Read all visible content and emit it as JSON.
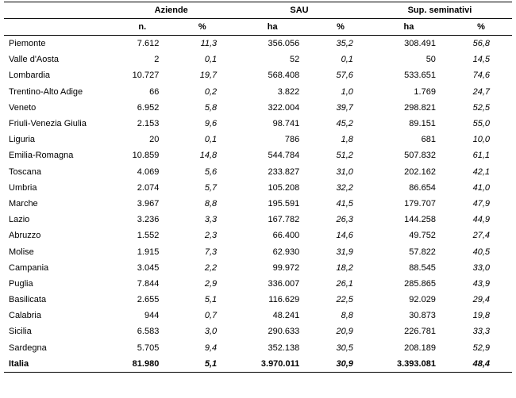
{
  "headers": {
    "group1": "Aziende",
    "group2": "SAU",
    "group3": "Sup. seminativi",
    "n": "n.",
    "pct": "%",
    "ha": "ha"
  },
  "rows": [
    {
      "region": "Piemonte",
      "n": "7.612",
      "np": "11,3",
      "ha1": "356.056",
      "p1": "35,2",
      "ha2": "308.491",
      "p2": "56,8"
    },
    {
      "region": "Valle d'Aosta",
      "n": "2",
      "np": "0,1",
      "ha1": "52",
      "p1": "0,1",
      "ha2": "50",
      "p2": "14,5"
    },
    {
      "region": "Lombardia",
      "n": "10.727",
      "np": "19,7",
      "ha1": "568.408",
      "p1": "57,6",
      "ha2": "533.651",
      "p2": "74,6"
    },
    {
      "region": "Trentino-Alto Adige",
      "n": "66",
      "np": "0,2",
      "ha1": "3.822",
      "p1": "1,0",
      "ha2": "1.769",
      "p2": "24,7"
    },
    {
      "region": "Veneto",
      "n": "6.952",
      "np": "5,8",
      "ha1": "322.004",
      "p1": "39,7",
      "ha2": "298.821",
      "p2": "52,5"
    },
    {
      "region": "Friuli-Venezia Giulia",
      "n": "2.153",
      "np": "9,6",
      "ha1": "98.741",
      "p1": "45,2",
      "ha2": "89.151",
      "p2": "55,0"
    },
    {
      "region": "Liguria",
      "n": "20",
      "np": "0,1",
      "ha1": "786",
      "p1": "1,8",
      "ha2": "681",
      "p2": "10,0"
    },
    {
      "region": "Emilia-Romagna",
      "n": "10.859",
      "np": "14,8",
      "ha1": "544.784",
      "p1": "51,2",
      "ha2": "507.832",
      "p2": "61,1"
    },
    {
      "region": "Toscana",
      "n": "4.069",
      "np": "5,6",
      "ha1": "233.827",
      "p1": "31,0",
      "ha2": "202.162",
      "p2": "42,1"
    },
    {
      "region": "Umbria",
      "n": "2.074",
      "np": "5,7",
      "ha1": "105.208",
      "p1": "32,2",
      "ha2": "86.654",
      "p2": "41,0"
    },
    {
      "region": "Marche",
      "n": "3.967",
      "np": "8,8",
      "ha1": "195.591",
      "p1": "41,5",
      "ha2": "179.707",
      "p2": "47,9"
    },
    {
      "region": "Lazio",
      "n": "3.236",
      "np": "3,3",
      "ha1": "167.782",
      "p1": "26,3",
      "ha2": "144.258",
      "p2": "44,9"
    },
    {
      "region": "Abruzzo",
      "n": "1.552",
      "np": "2,3",
      "ha1": "66.400",
      "p1": "14,6",
      "ha2": "49.752",
      "p2": "27,4"
    },
    {
      "region": "Molise",
      "n": "1.915",
      "np": "7,3",
      "ha1": "62.930",
      "p1": "31,9",
      "ha2": "57.822",
      "p2": "40,5"
    },
    {
      "region": "Campania",
      "n": "3.045",
      "np": "2,2",
      "ha1": "99.972",
      "p1": "18,2",
      "ha2": "88.545",
      "p2": "33,0"
    },
    {
      "region": "Puglia",
      "n": "7.844",
      "np": "2,9",
      "ha1": "336.007",
      "p1": "26,1",
      "ha2": "285.865",
      "p2": "43,9"
    },
    {
      "region": "Basilicata",
      "n": "2.655",
      "np": "5,1",
      "ha1": "116.629",
      "p1": "22,5",
      "ha2": "92.029",
      "p2": "29,4"
    },
    {
      "region": "Calabria",
      "n": "944",
      "np": "0,7",
      "ha1": "48.241",
      "p1": "8,8",
      "ha2": "30.873",
      "p2": "19,8"
    },
    {
      "region": "Sicilia",
      "n": "6.583",
      "np": "3,0",
      "ha1": "290.633",
      "p1": "20,9",
      "ha2": "226.781",
      "p2": "33,3"
    },
    {
      "region": "Sardegna",
      "n": "5.705",
      "np": "9,4",
      "ha1": "352.138",
      "p1": "30,5",
      "ha2": "208.189",
      "p2": "52,9"
    }
  ],
  "total": {
    "region": "Italia",
    "n": "81.980",
    "np": "5,1",
    "ha1": "3.970.011",
    "p1": "30,9",
    "ha2": "3.393.081",
    "p2": "48,4"
  }
}
